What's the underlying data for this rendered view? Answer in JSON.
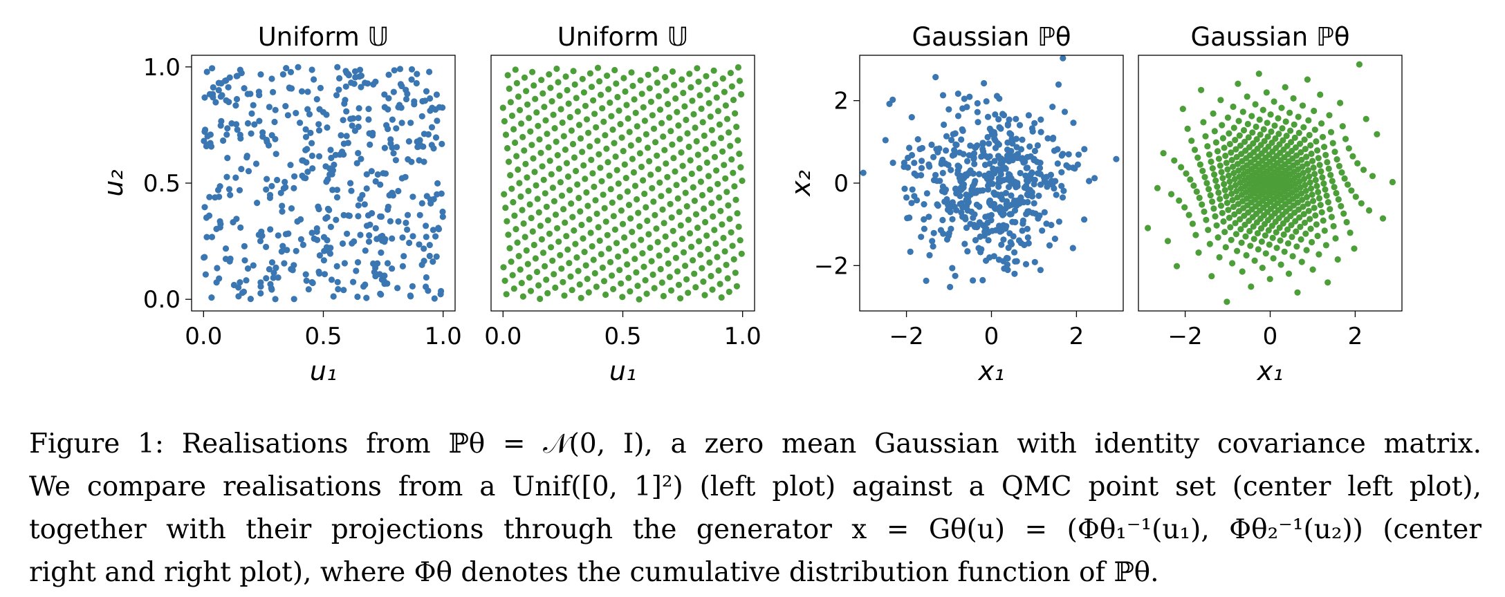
{
  "figure": {
    "caption_lines": [
      "Figure 1: Realisations from ℙθ = 𝒩(0, I), a zero mean Gaussian with identity covariance matrix.",
      "We compare realisations from a Unif([0, 1]²) (left plot) against a QMC point set (center left plot),",
      "together with their projections through the generator x = Gθ(u) = (Φθ₁⁻¹(u₁), Φθ₂⁻¹(u₂)) (center",
      "right and right plot), where Φθ denotes the cumulative distribution function of ℙθ."
    ]
  },
  "colors": {
    "blue": "#3a76b2",
    "green": "#4c9e38",
    "frame": "#000000"
  },
  "chart_data": [
    {
      "type": "scatter",
      "title": "Uniform 𝕌",
      "xlabel": "u₁",
      "ylabel": "u₂",
      "xlim": [
        0.0,
        1.0
      ],
      "ylim": [
        0.0,
        1.0
      ],
      "xticks": [
        "0.0",
        "0.5",
        "1.0"
      ],
      "yticks": [
        "0.0",
        "0.5",
        "1.0"
      ],
      "color": "#3a76b2",
      "n_points": 500,
      "distribution": "iid uniform on [0,1]^2",
      "grid": false
    },
    {
      "type": "scatter",
      "title": "Uniform 𝕌",
      "xlabel": "u₁",
      "ylabel": "",
      "xlim": [
        0.0,
        1.0
      ],
      "ylim": [
        0.0,
        1.0
      ],
      "xticks": [
        "0.0",
        "0.5",
        "1.0"
      ],
      "yticks": [],
      "color": "#4c9e38",
      "n_points": 500,
      "distribution": "QMC lattice on [0,1]^2",
      "grid": false
    },
    {
      "type": "scatter",
      "title": "Gaussian ℙθ",
      "xlabel": "x₁",
      "ylabel": "x₂",
      "xlim": [
        -3.0,
        3.0
      ],
      "ylim": [
        -3.0,
        3.0
      ],
      "xticks": [
        "−2",
        "0",
        "2"
      ],
      "yticks": [
        "−2",
        "0",
        "2"
      ],
      "color": "#3a76b2",
      "n_points": 500,
      "distribution": "iid standard normal",
      "grid": false
    },
    {
      "type": "scatter",
      "title": "Gaussian ℙθ",
      "xlabel": "x₁",
      "ylabel": "",
      "xlim": [
        -3.0,
        3.0
      ],
      "ylim": [
        -3.0,
        3.0
      ],
      "xticks": [
        "−2",
        "0",
        "2"
      ],
      "yticks": [],
      "color": "#4c9e38",
      "n_points": 500,
      "distribution": "QMC lattice mapped through inverse normal CDF",
      "grid": false
    }
  ]
}
